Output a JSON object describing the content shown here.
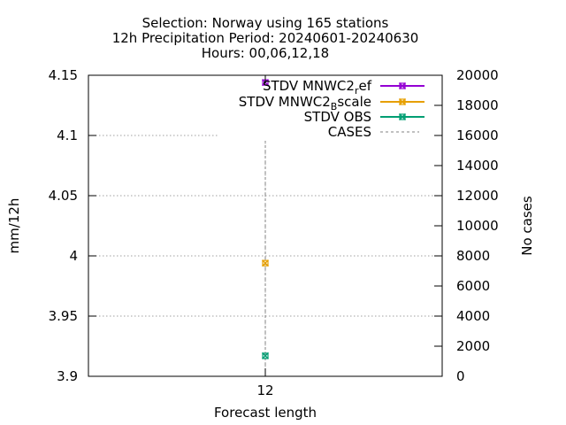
{
  "chart_data": {
    "type": "scatter",
    "title_lines": [
      "Selection: Norway using   165 stations",
      "12h Precipitation   Period: 20240601-20240630",
      "Hours: 00,06,12,18"
    ],
    "xlabel": "Forecast length",
    "ylabel": "mm/12h",
    "y2label": "No cases",
    "x_ticks": [
      "12"
    ],
    "ylim": [
      3.9,
      4.15
    ],
    "y_ticks": [
      3.9,
      3.95,
      4,
      4.05,
      4.1,
      4.15
    ],
    "y_tick_labels": [
      "3.9",
      "3.95",
      "4",
      "4.05",
      "4.1",
      "4.15"
    ],
    "y2lim": [
      0,
      20000
    ],
    "y2_ticks": [
      0,
      2000,
      4000,
      6000,
      8000,
      10000,
      12000,
      14000,
      16000,
      18000,
      20000
    ],
    "y2_tick_labels": [
      "0",
      "2000",
      "4000",
      "6000",
      "8000",
      "10000",
      "12000",
      "14000",
      "16000",
      "18000",
      "20000"
    ],
    "grid": true,
    "legend_position": "top-right",
    "series": [
      {
        "legend_main": "STDV MNWC2",
        "legend_sub": "r",
        "legend_tail": "ef",
        "color": "#9400d3",
        "x": "12",
        "y": 4.144,
        "marker": "x-square",
        "axis": "y1"
      },
      {
        "legend_main": "STDV MNWC2",
        "legend_sub": "B",
        "legend_tail": "scale",
        "color": "#e69f00",
        "x": "12",
        "y": 3.994,
        "marker": "x-square",
        "axis": "y1"
      },
      {
        "legend_main": "STDV OBS",
        "legend_sub": "",
        "legend_tail": "",
        "color": "#009e73",
        "x": "12",
        "y": 3.917,
        "marker": "x-square",
        "axis": "y1"
      },
      {
        "legend_main": "CASES",
        "legend_sub": "",
        "legend_tail": "",
        "color": "#808080",
        "x": "12",
        "y": 15700,
        "marker": "impulse",
        "axis": "y2"
      }
    ]
  }
}
